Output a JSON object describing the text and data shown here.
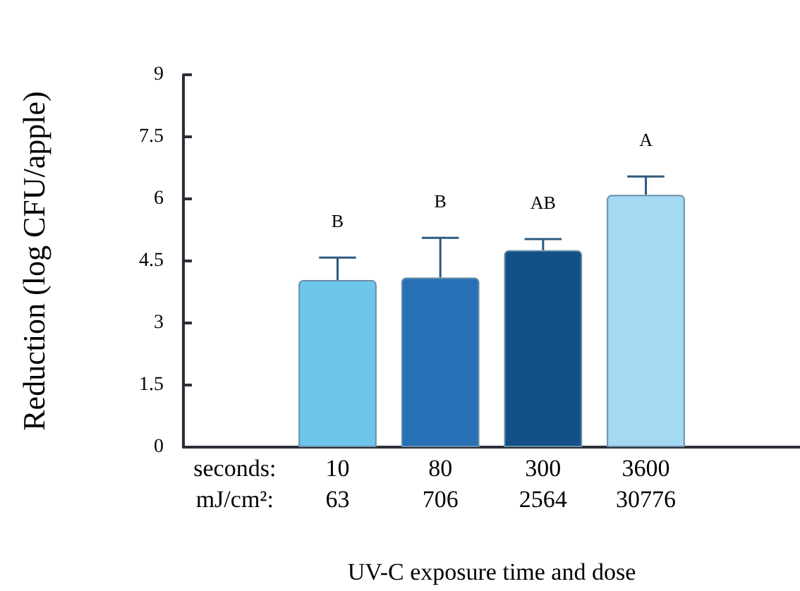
{
  "chart_data": {
    "type": "bar",
    "xlabel": "UV-C exposure time and dose",
    "ylabel": "Reduction (log CFU/apple)",
    "categories": [
      null,
      "10\n63",
      "80\n706",
      "300\n2564",
      "3600\n30776",
      null
    ],
    "values": [
      null,
      4.04,
      4.1,
      4.76,
      6.1,
      null
    ],
    "colors": [
      "#6fc6ed",
      "#6fc6ed",
      "#2870b6",
      "#135087",
      "#a3d9f3",
      "#a3d9f3"
    ],
    "errors": [
      null,
      [
        4.04,
        4.58
      ],
      [
        4.1,
        5.06
      ],
      [
        4.76,
        5.03
      ],
      [
        6.1,
        6.54
      ],
      null
    ],
    "ylim": [
      0,
      9
    ],
    "yticks": [
      0,
      1.5,
      3,
      4.5,
      6,
      7.5,
      9
    ],
    "grid": false,
    "annotations": [
      "B",
      "B",
      "AB",
      "A",
      "seconds:",
      "mJ/cm²:"
    ]
  }
}
